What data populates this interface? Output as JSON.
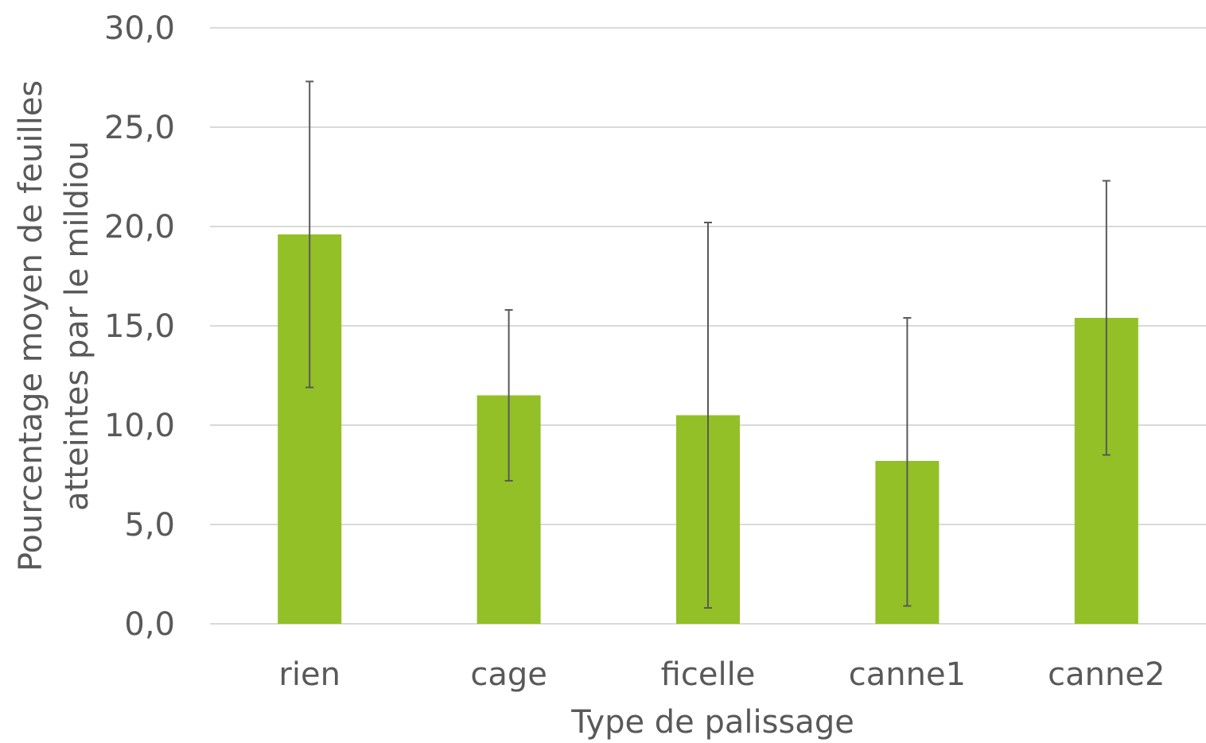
{
  "chart_data": {
    "type": "bar",
    "categories": [
      "rien",
      "cage",
      "ficelle",
      "canne1",
      "canne2"
    ],
    "values": [
      19.6,
      11.5,
      10.5,
      8.2,
      15.4
    ],
    "error_low": [
      11.9,
      7.2,
      0.8,
      0.9,
      8.5
    ],
    "error_high": [
      27.3,
      15.8,
      20.2,
      15.4,
      22.3
    ],
    "xlabel": "Type de palissage",
    "ylabel_line1": "Pourcentage moyen de feuilles",
    "ylabel_line2": "atteintes par le mildiou",
    "ylim": [
      0,
      30
    ],
    "yticks": [
      "0,0",
      "5,0",
      "10,0",
      "15,0",
      "20,0",
      "25,0",
      "30,0"
    ],
    "grid": true,
    "bar_color": "#92c026",
    "error_bar_color": "#595959"
  }
}
